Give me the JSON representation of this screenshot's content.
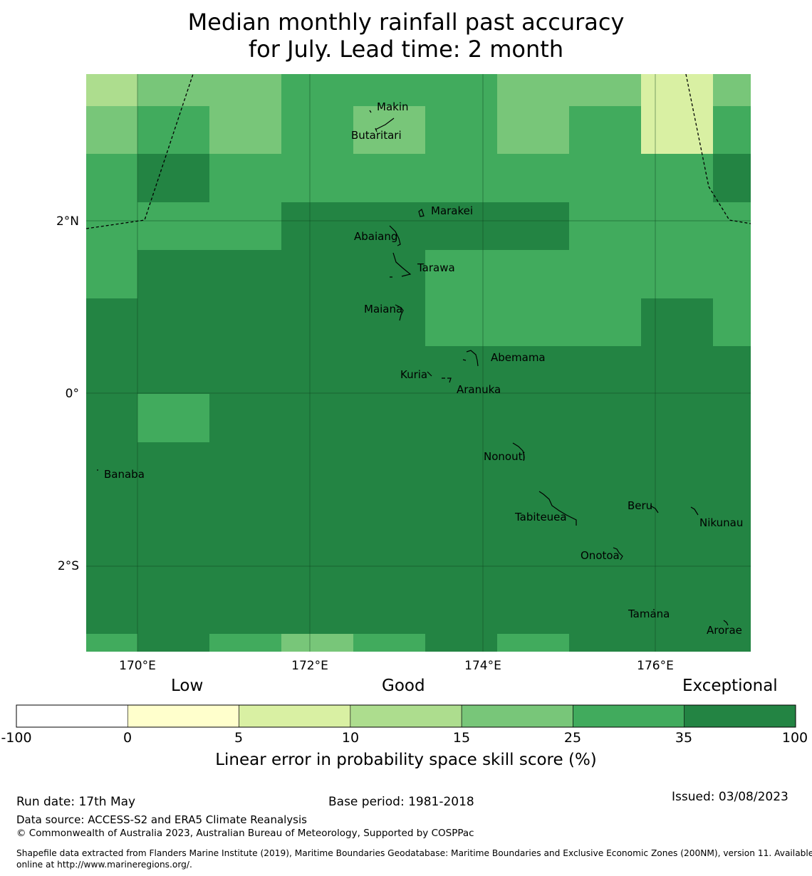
{
  "title": {
    "line1": "Median monthly rainfall past accuracy",
    "line2": "for July. Lead time: 2 month"
  },
  "map": {
    "lat_labels": [
      "2°N",
      "0°",
      "2°S"
    ],
    "lon_labels": [
      "170°E",
      "172°E",
      "174°E",
      "176°E"
    ],
    "islands": [
      "Makin",
      "Butaritari",
      "Marakei",
      "Abaiang",
      "Tarawa",
      "Maiana",
      "Abemama",
      "Kuria",
      "Aranuka",
      "Nonouti",
      "Banaba",
      "Tabiteuea",
      "Beru",
      "Nikunau",
      "Onotoa",
      "Tamana",
      "Arorae"
    ],
    "skill_colors": {
      "0-5": "#ffffcc",
      "5-10": "#d9f0a3",
      "10-15": "#addd8e",
      "15-25": "#78c679",
      "25-35": "#41ab5d",
      "35-100": "#238443"
    }
  },
  "legend": {
    "categories": [
      "Low",
      "Good",
      "Exceptional"
    ],
    "ticks": [
      "-100",
      "0",
      "5",
      "10",
      "15",
      "25",
      "35",
      "100"
    ],
    "colors": [
      "#ffffff",
      "#ffffcc",
      "#d9f0a3",
      "#addd8e",
      "#78c679",
      "#41ab5d",
      "#238443"
    ],
    "label": "Linear error in probability space skill score (%)"
  },
  "footer": {
    "run_date": "Run date: 17th May",
    "base_period": "Base period: 1981-2018",
    "issued": "Issued: 03/08/2023",
    "data_source": "Data source: ACCESS-S2 and ERA5 Climate Reanalysis",
    "copyright": "© Commonwealth of Australia 2023, Australian Bureau of Meteorology, Supported by COSPPac",
    "shapefile_1": "Shapefile data extracted from Flanders Marine Institute (2019), Maritime Boundaries Geodatabase: Maritime Boundaries and Exclusive Economic Zones (200NM), version 11. Available",
    "shapefile_2": "online at http://www.marineregions.org/."
  }
}
